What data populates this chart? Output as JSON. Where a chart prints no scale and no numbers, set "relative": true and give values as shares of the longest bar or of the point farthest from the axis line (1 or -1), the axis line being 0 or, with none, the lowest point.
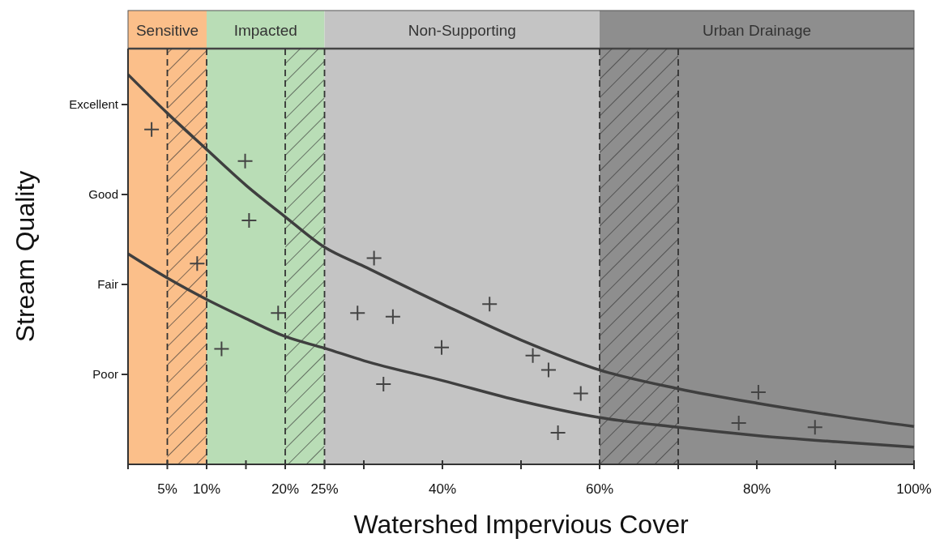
{
  "chart_data": {
    "type": "scatter",
    "xlabel": "Watershed Impervious Cover",
    "ylabel": "Stream Quality",
    "relative": true,
    "xlim": [
      0,
      100
    ],
    "xticks": [
      {
        "value": 0,
        "label": null
      },
      {
        "value": 5,
        "label": "5%"
      },
      {
        "value": 10,
        "label": "10%"
      },
      {
        "value": 15,
        "label": null
      },
      {
        "value": 20,
        "label": "20%"
      },
      {
        "value": 25,
        "label": "25%"
      },
      {
        "value": 30,
        "label": null
      },
      {
        "value": 40,
        "label": "40%"
      },
      {
        "value": 50,
        "label": null
      },
      {
        "value": 60,
        "label": "60%"
      },
      {
        "value": 70,
        "label": null
      },
      {
        "value": 80,
        "label": "80%"
      },
      {
        "value": 90,
        "label": null
      },
      {
        "value": 100,
        "label": "100%"
      }
    ],
    "annotations": [
      "Poor",
      "Fair",
      "Good",
      "Excellent"
    ],
    "marker": "cross",
    "ref_lines": [
      {
        "axis": "x",
        "value": 5,
        "color": "#333333",
        "line_style": "dashed"
      },
      {
        "axis": "x",
        "value": 10,
        "color": "#333333",
        "line_style": "dashed"
      },
      {
        "axis": "x",
        "value": 20,
        "color": "#333333",
        "line_style": "dashed"
      },
      {
        "axis": "x",
        "value": 25,
        "color": "#333333",
        "line_style": "dashed"
      },
      {
        "axis": "x",
        "value": 60,
        "color": "#333333",
        "line_style": "dashed"
      },
      {
        "axis": "x",
        "value": 70,
        "color": "#333333",
        "line_style": "dashed"
      }
    ],
    "bands": [
      {
        "axis": "x",
        "from": 0,
        "to": 10,
        "label": "Sensitive",
        "color": "#fbbf8a"
      },
      {
        "axis": "x",
        "from": 10,
        "to": 25,
        "label": "Impacted",
        "color": "#b9ddb6"
      },
      {
        "axis": "x",
        "from": 25,
        "to": 60,
        "label": "Non-Supporting",
        "color": "#c4c4c4"
      },
      {
        "axis": "x",
        "from": 60,
        "to": 100,
        "label": "Urban Drainage",
        "color": "#8e8e8e"
      },
      {
        "axis": "x",
        "from": 5,
        "to": 10,
        "color": "#333333"
      },
      {
        "axis": "x",
        "from": 20,
        "to": 25,
        "color": "#333333"
      },
      {
        "axis": "x",
        "from": 60,
        "to": 70,
        "color": "#333333"
      }
    ],
    "series": [
      {
        "color": "#444444",
        "x": [
          3.0,
          14.9,
          15.4,
          8.8,
          19.1,
          11.9,
          29.2,
          31.3,
          33.7,
          32.5,
          39.9,
          46.0,
          51.5,
          53.5,
          54.7,
          57.6,
          77.7,
          80.2,
          87.4
        ],
        "values": [
          0.859,
          0.778,
          0.626,
          0.515,
          0.388,
          0.296,
          0.388,
          0.529,
          0.379,
          0.206,
          0.3,
          0.411,
          0.279,
          0.242,
          0.081,
          0.182,
          0.106,
          0.185,
          0.095
        ]
      },
      {
        "type": "line",
        "color": "#3f3f3f",
        "line_style": "solid",
        "marker": "none",
        "x": [
          0,
          5,
          10,
          15,
          20,
          25,
          30,
          40,
          50,
          60,
          70,
          80,
          90,
          100
        ],
        "values": [
          1,
          0.901,
          0.808,
          0.716,
          0.635,
          0.557,
          0.508,
          0.411,
          0.319,
          0.242,
          0.194,
          0.157,
          0.125,
          0.097
        ]
      },
      {
        "type": "line",
        "color": "#3f3f3f",
        "line_style": "solid",
        "marker": "none",
        "x": [
          0,
          5,
          10,
          15,
          20,
          25,
          30,
          40,
          50,
          60,
          70,
          80,
          90,
          100
        ],
        "values": [
          0.54,
          0.478,
          0.423,
          0.374,
          0.328,
          0.298,
          0.266,
          0.215,
          0.162,
          0.12,
          0.095,
          0.074,
          0.058,
          0.044
        ]
      }
    ]
  }
}
